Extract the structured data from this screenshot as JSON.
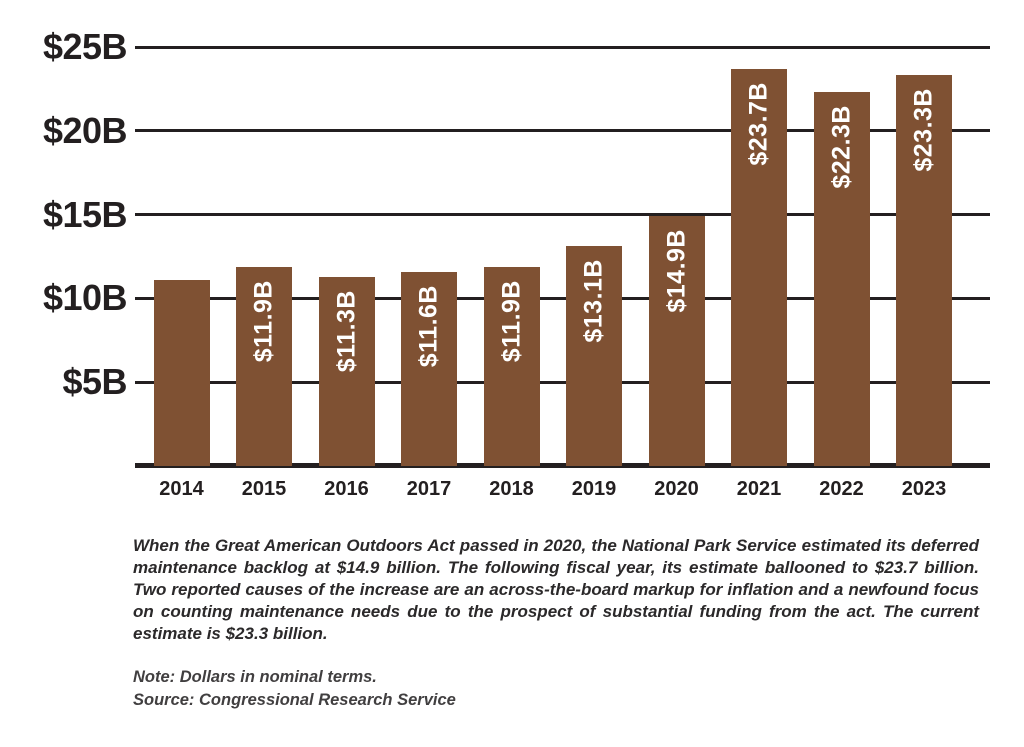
{
  "colors": {
    "background": "#ffffff",
    "bar": "#7F5133",
    "axis": "#231F20",
    "bar_label_text": "#ffffff",
    "caption_text": "#2B292A",
    "footnote_text": "#413F40"
  },
  "chart_data": {
    "type": "bar",
    "title": "",
    "xlabel": "",
    "ylabel": "",
    "categories": [
      "2014",
      "2015",
      "2016",
      "2017",
      "2018",
      "2019",
      "2020",
      "2021",
      "2022",
      "2023"
    ],
    "values": [
      11.1,
      11.9,
      11.3,
      11.6,
      11.9,
      13.1,
      14.9,
      23.7,
      22.3,
      23.3
    ],
    "bar_labels": [
      "",
      "$11.9B",
      "$11.3B",
      "$11.6B",
      "$11.9B",
      "$13.1B",
      "$14.9B",
      "$23.7B",
      "$22.3B",
      "$23.3B"
    ],
    "y_ticks": [
      {
        "label": "$25B",
        "value": 25
      },
      {
        "label": "$20B",
        "value": 20
      },
      {
        "label": "$15B",
        "value": 15
      },
      {
        "label": "$10B",
        "value": 10
      },
      {
        "label": "$5B",
        "value": 5
      }
    ],
    "ylim": [
      0,
      25
    ],
    "grid": true,
    "legend_position": "none"
  },
  "caption": {
    "text": "When the Great American Outdoors Act passed in 2020, the National Park Service estimated its deferred maintenance backlog at $14.9 billion. The following fiscal year, its estimate ballooned to $23.7 billion. Two reported causes of the increase are an across-the-board markup for inflation and a newfound focus on counting maintenance needs due to the prospect of substantial funding from the act. The current estimate is $23.3 billion."
  },
  "note": "Note: Dollars in nominal terms.",
  "source": "Source: Congressional Research Service"
}
